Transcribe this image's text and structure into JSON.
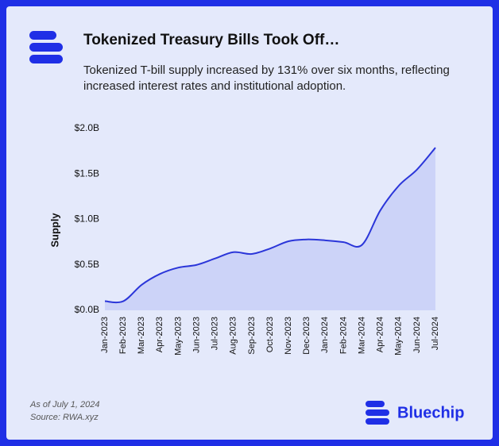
{
  "chart_data": {
    "type": "area",
    "title": "Tokenized Treasury Bills Took Off…",
    "subtitle": "Tokenized T-bill supply increased by 131% over six months, reflecting increased interest rates and institutional adoption.",
    "y_label": "Supply",
    "categories": [
      "Jan-2023",
      "Feb-2023",
      "Mar-2023",
      "Apr-2023",
      "May-2023",
      "Jun-2023",
      "Jul-2023",
      "Aug-2023",
      "Sep-2023",
      "Oct-2023",
      "Nov-2023",
      "Dec-2023",
      "Jan-2024",
      "Feb-2024",
      "Mar-2024",
      "Apr-2024",
      "May-2024",
      "Jun-2024",
      "Jul-2024"
    ],
    "values": [
      0.1,
      0.1,
      0.28,
      0.4,
      0.47,
      0.5,
      0.57,
      0.64,
      0.62,
      0.68,
      0.76,
      0.78,
      0.77,
      0.75,
      0.72,
      1.1,
      1.37,
      1.55,
      1.79
    ],
    "color": "#2b36d9",
    "fill": "#ccd3f8",
    "ylim": [
      0,
      2
    ],
    "yticks": [
      {
        "value": 0,
        "label": "$0.0B"
      },
      {
        "value": 0.5,
        "label": "$0.5B"
      },
      {
        "value": 1,
        "label": "$1.0B"
      },
      {
        "value": 1.5,
        "label": "$1.5B"
      },
      {
        "value": 2,
        "label": "$2.0B"
      }
    ],
    "notes": [
      "As of July 1, 2024",
      "Source: RWA.xyz"
    ],
    "brand": "Bluechip"
  }
}
